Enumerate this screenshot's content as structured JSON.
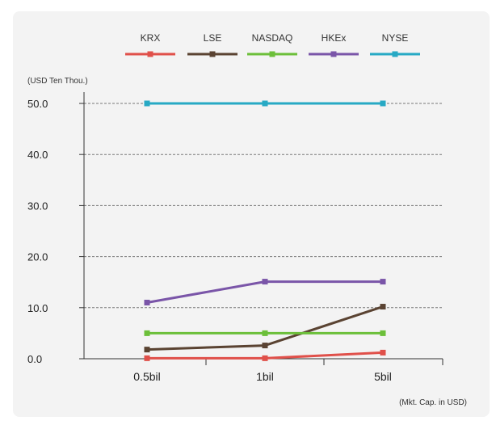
{
  "chart_data": {
    "type": "line",
    "title": "",
    "ylabel": "(USD Ten Thou.)",
    "xlabel": "(Mkt. Cap. in USD)",
    "categories": [
      "0.5bil",
      "1bil",
      "5bil"
    ],
    "ylim": [
      0,
      50
    ],
    "yticks": [
      "0.0",
      "10.0",
      "20.0",
      "30.0",
      "40.0",
      "50.0"
    ],
    "ytick_values": [
      0,
      10,
      20,
      30,
      40,
      50
    ],
    "grid": "horizontal-dashed",
    "legend_position": "top",
    "series": [
      {
        "name": "KRX",
        "color": "#e0504a",
        "values": [
          0.1,
          0.1,
          1.2
        ]
      },
      {
        "name": "LSE",
        "color": "#5a4332",
        "values": [
          1.8,
          2.6,
          10.2
        ]
      },
      {
        "name": "NASDAQ",
        "color": "#6cbf3a",
        "values": [
          5.0,
          5.0,
          5.0
        ]
      },
      {
        "name": "HKEx",
        "color": "#7a55a8",
        "values": [
          11.0,
          15.1,
          15.1
        ]
      },
      {
        "name": "NYSE",
        "color": "#27a9c4",
        "values": [
          50.0,
          50.0,
          50.0
        ]
      }
    ]
  }
}
